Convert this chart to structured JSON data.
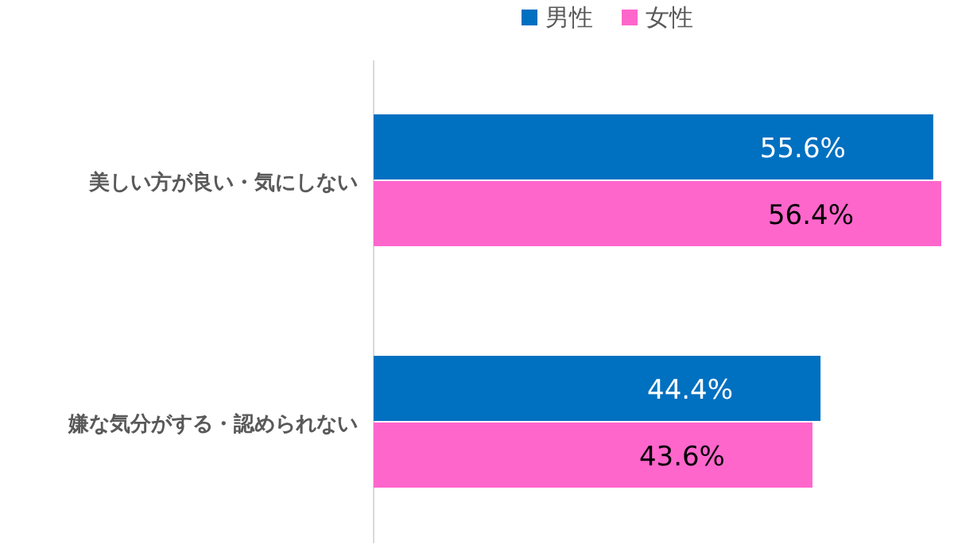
{
  "chart_data": {
    "type": "bar",
    "orientation": "horizontal",
    "categories": [
      "美しい方が良い・気にしない",
      "嫌な気分がする・認められない"
    ],
    "series": [
      {
        "name": "男性",
        "color": "#0070c0",
        "values": [
          55.6,
          44.4
        ],
        "value_labels": [
          "55.6%",
          "44.4%"
        ]
      },
      {
        "name": "女性",
        "color": "#ff66cc",
        "values": [
          56.4,
          43.6
        ],
        "value_labels": [
          "56.4%",
          "43.6%"
        ]
      }
    ],
    "legend": "top"
  }
}
